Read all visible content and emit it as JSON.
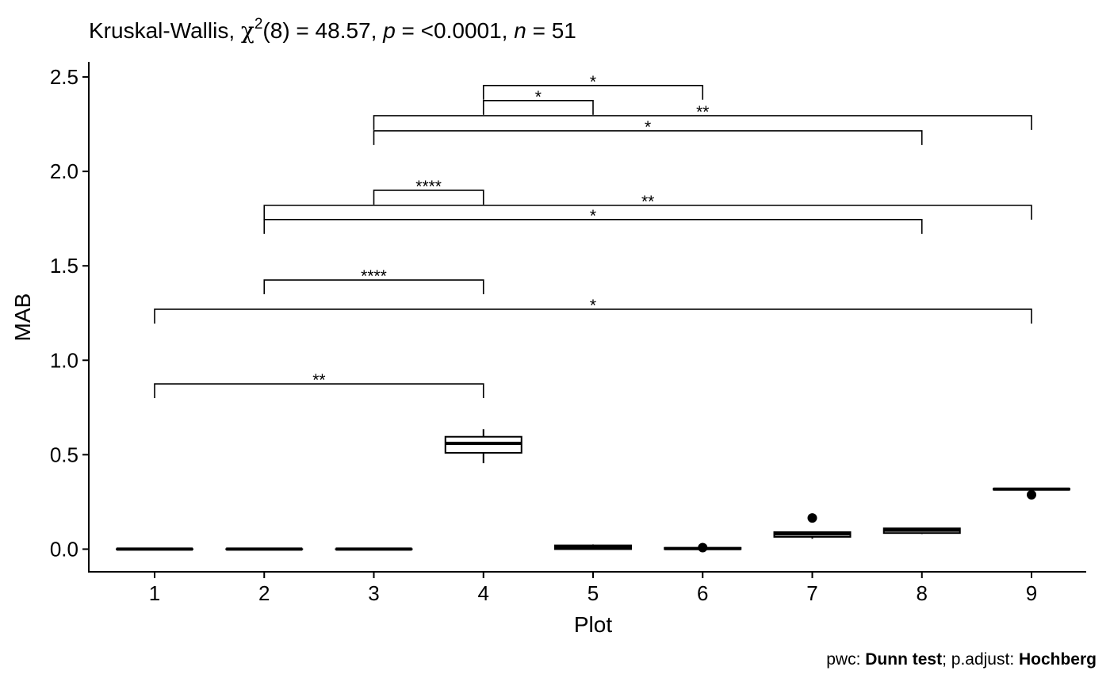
{
  "chart_data": {
    "type": "box",
    "title": {
      "test": "Kruskal-Wallis, ",
      "stat_symbol": "χ",
      "stat_sup": "2",
      "stat_text": "(8) = 48.57, ",
      "p_symbol": "p",
      "p_text": " = <0.0001, ",
      "n_symbol": "n",
      "n_text": " = 51"
    },
    "xlabel": "Plot",
    "ylabel": "MAB",
    "categories": [
      "1",
      "2",
      "3",
      "4",
      "5",
      "6",
      "7",
      "8",
      "9"
    ],
    "ylim": [
      -0.12,
      2.58
    ],
    "yticks": [
      0.0,
      0.5,
      1.0,
      1.5,
      2.0,
      2.5
    ],
    "ytick_labels": [
      "0.0",
      "0.5",
      "1.0",
      "1.5",
      "2.0",
      "2.5"
    ],
    "grid": false,
    "boxes": [
      {
        "x": "1",
        "q1": 0.0,
        "median": 0.0,
        "q3": 0.0,
        "whisker_low": 0.0,
        "whisker_high": 0.0,
        "outliers": []
      },
      {
        "x": "2",
        "q1": 0.0,
        "median": 0.0,
        "q3": 0.0,
        "whisker_low": 0.0,
        "whisker_high": 0.0,
        "outliers": []
      },
      {
        "x": "3",
        "q1": 0.0,
        "median": 0.0,
        "q3": 0.0,
        "whisker_low": 0.0,
        "whisker_high": 0.0,
        "outliers": []
      },
      {
        "x": "4",
        "q1": 0.51,
        "median": 0.56,
        "q3": 0.595,
        "whisker_low": 0.455,
        "whisker_high": 0.635,
        "outliers": []
      },
      {
        "x": "5",
        "q1": 0.0,
        "median": 0.01,
        "q3": 0.02,
        "whisker_low": 0.0,
        "whisker_high": 0.025,
        "outliers": []
      },
      {
        "x": "6",
        "q1": 0.0,
        "median": 0.003,
        "q3": 0.007,
        "whisker_low": 0.0,
        "whisker_high": 0.008,
        "outliers": [
          0.008
        ]
      },
      {
        "x": "7",
        "q1": 0.065,
        "median": 0.08,
        "q3": 0.09,
        "whisker_low": 0.055,
        "whisker_high": 0.092,
        "outliers": [
          0.165
        ]
      },
      {
        "x": "8",
        "q1": 0.085,
        "median": 0.1,
        "q3": 0.11,
        "whisker_low": 0.08,
        "whisker_high": 0.112,
        "outliers": []
      },
      {
        "x": "9",
        "q1": 0.315,
        "median": 0.318,
        "q3": 0.32,
        "whisker_low": 0.313,
        "whisker_high": 0.322,
        "outliers": [
          0.288
        ]
      }
    ],
    "comparisons": [
      {
        "group1": "4",
        "group2": "6",
        "label": "*",
        "y": 2.455
      },
      {
        "group1": "4",
        "group2": "5",
        "label": "*",
        "y": 2.375
      },
      {
        "group1": "3",
        "group2": "9",
        "label": "**",
        "y": 2.295
      },
      {
        "group1": "3",
        "group2": "8",
        "label": "*",
        "y": 2.215
      },
      {
        "group1": "3",
        "group2": "4",
        "label": "****",
        "y": 1.9
      },
      {
        "group1": "2",
        "group2": "9",
        "label": "**",
        "y": 1.82
      },
      {
        "group1": "2",
        "group2": "8",
        "label": "*",
        "y": 1.745
      },
      {
        "group1": "2",
        "group2": "4",
        "label": "****",
        "y": 1.425
      },
      {
        "group1": "1",
        "group2": "9",
        "label": "*",
        "y": 1.27
      },
      {
        "group1": "1",
        "group2": "4",
        "label": "**",
        "y": 0.875
      }
    ],
    "caption": {
      "prefix": "pwc: ",
      "method": "Dunn test",
      "middle": "; p.adjust: ",
      "adjust": "Hochberg"
    }
  }
}
